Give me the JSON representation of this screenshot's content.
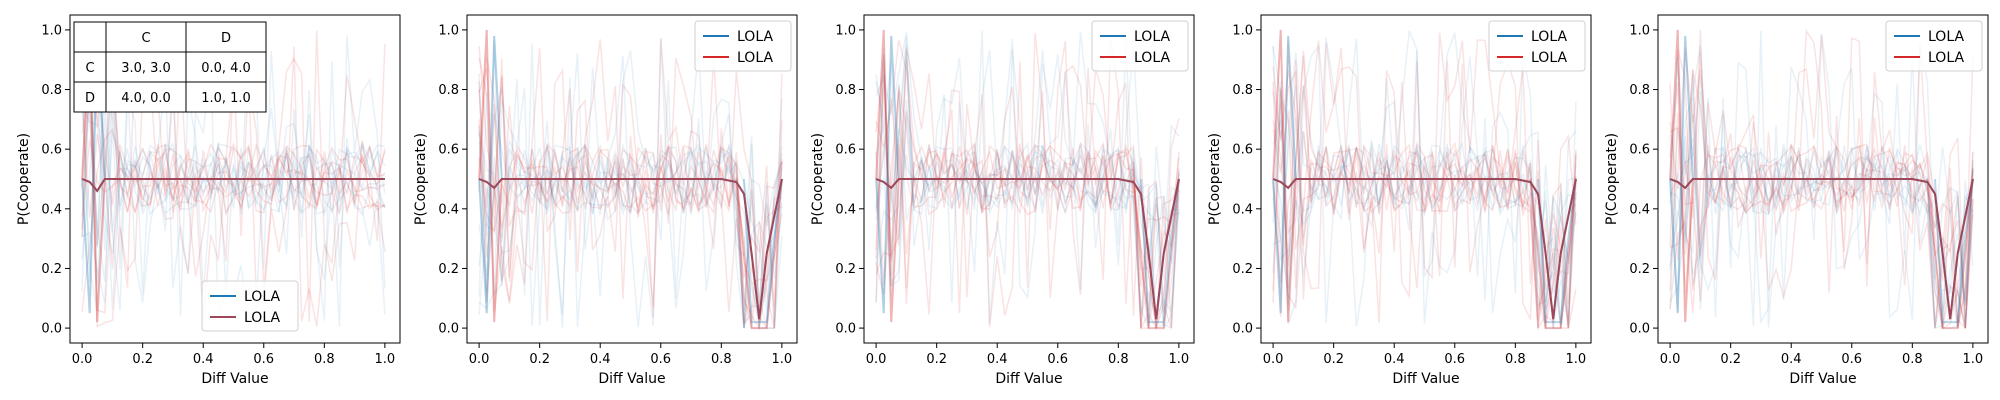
{
  "colors": {
    "blue": "#1f77b4",
    "red": "#d62728",
    "mean_line": "#a0485a",
    "background": "#ffffff"
  },
  "chart_data": [
    {
      "type": "line",
      "xlabel": "Diff Value",
      "ylabel": "P(Cooperate)",
      "xlim": [
        -0.04,
        1.05
      ],
      "ylim": [
        -0.05,
        1.05
      ],
      "xticks": [
        "0.0",
        "0.2",
        "0.4",
        "0.6",
        "0.8",
        "1.0"
      ],
      "yticks": [
        "0.0",
        "0.2",
        "0.4",
        "0.6",
        "0.8",
        "1.0"
      ],
      "legend": {
        "placement": "lower-center",
        "entries": [
          "LOLA",
          "LOLA"
        ]
      },
      "payoff_table": {
        "col_headers": [
          "C",
          "D"
        ],
        "rows": [
          {
            "label": "C",
            "cells": [
              "3.0, 3.0",
              "0.0, 4.0"
            ]
          },
          {
            "label": "D",
            "cells": [
              "4.0, 0.0",
              "1.0, 1.0"
            ]
          }
        ]
      },
      "series": [
        {
          "x": [
            0.0,
            0.025,
            0.05,
            0.075,
            0.1,
            0.125,
            0.15,
            0.2,
            0.25,
            0.3,
            0.35,
            0.4,
            0.45,
            0.5,
            0.55,
            0.6,
            0.65,
            0.7,
            0.75,
            0.8,
            0.85,
            0.9,
            0.95,
            1.0
          ],
          "y": [
            0.5,
            0.49,
            0.46,
            0.5,
            0.5,
            0.5,
            0.5,
            0.5,
            0.5,
            0.5,
            0.5,
            0.5,
            0.5,
            0.5,
            0.5,
            0.5,
            0.5,
            0.5,
            0.5,
            0.5,
            0.5,
            0.5,
            0.5,
            0.5
          ]
        }
      ]
    },
    {
      "type": "line",
      "xlabel": "Diff Value",
      "ylabel": "P(Cooperate)",
      "xlim": [
        -0.04,
        1.05
      ],
      "ylim": [
        -0.05,
        1.05
      ],
      "xticks": [
        "0.0",
        "0.2",
        "0.4",
        "0.6",
        "0.8",
        "1.0"
      ],
      "yticks": [
        "0.0",
        "0.2",
        "0.4",
        "0.6",
        "0.8",
        "1.0"
      ],
      "legend": {
        "placement": "top-right",
        "entries": [
          "LOLA",
          "LOLA"
        ]
      },
      "series": [
        {
          "x": [
            0.0,
            0.025,
            0.05,
            0.075,
            0.1,
            0.15,
            0.2,
            0.3,
            0.4,
            0.5,
            0.6,
            0.7,
            0.8,
            0.85,
            0.875,
            0.9,
            0.925,
            0.95,
            1.0
          ],
          "y": [
            0.5,
            0.49,
            0.47,
            0.5,
            0.5,
            0.5,
            0.5,
            0.5,
            0.5,
            0.5,
            0.5,
            0.5,
            0.5,
            0.49,
            0.45,
            0.25,
            0.03,
            0.25,
            0.5
          ]
        }
      ]
    },
    {
      "type": "line",
      "xlabel": "Diff Value",
      "ylabel": "P(Cooperate)",
      "xlim": [
        -0.04,
        1.05
      ],
      "ylim": [
        -0.05,
        1.05
      ],
      "xticks": [
        "0.0",
        "0.2",
        "0.4",
        "0.6",
        "0.8",
        "1.0"
      ],
      "yticks": [
        "0.0",
        "0.2",
        "0.4",
        "0.6",
        "0.8",
        "1.0"
      ],
      "legend": {
        "placement": "top-right",
        "entries": [
          "LOLA",
          "LOLA"
        ]
      },
      "series": [
        {
          "x": [
            0.0,
            0.025,
            0.05,
            0.075,
            0.1,
            0.15,
            0.2,
            0.3,
            0.4,
            0.5,
            0.6,
            0.7,
            0.8,
            0.85,
            0.875,
            0.9,
            0.925,
            0.95,
            1.0
          ],
          "y": [
            0.5,
            0.49,
            0.47,
            0.5,
            0.5,
            0.5,
            0.5,
            0.5,
            0.5,
            0.5,
            0.5,
            0.5,
            0.5,
            0.49,
            0.45,
            0.25,
            0.03,
            0.25,
            0.5
          ]
        }
      ]
    },
    {
      "type": "line",
      "xlabel": "Diff Value",
      "ylabel": "P(Cooperate)",
      "xlim": [
        -0.04,
        1.05
      ],
      "ylim": [
        -0.05,
        1.05
      ],
      "xticks": [
        "0.0",
        "0.2",
        "0.4",
        "0.6",
        "0.8",
        "1.0"
      ],
      "yticks": [
        "0.0",
        "0.2",
        "0.4",
        "0.6",
        "0.8",
        "1.0"
      ],
      "legend": {
        "placement": "top-right",
        "entries": [
          "LOLA",
          "LOLA"
        ]
      },
      "series": [
        {
          "x": [
            0.0,
            0.025,
            0.05,
            0.075,
            0.1,
            0.15,
            0.2,
            0.3,
            0.4,
            0.5,
            0.6,
            0.7,
            0.8,
            0.85,
            0.875,
            0.9,
            0.925,
            0.95,
            1.0
          ],
          "y": [
            0.5,
            0.49,
            0.47,
            0.5,
            0.5,
            0.5,
            0.5,
            0.5,
            0.5,
            0.5,
            0.5,
            0.5,
            0.5,
            0.49,
            0.45,
            0.25,
            0.03,
            0.25,
            0.5
          ]
        }
      ]
    },
    {
      "type": "line",
      "xlabel": "Diff Value",
      "ylabel": "P(Cooperate)",
      "xlim": [
        -0.04,
        1.05
      ],
      "ylim": [
        -0.05,
        1.05
      ],
      "xticks": [
        "0.0",
        "0.2",
        "0.4",
        "0.6",
        "0.8",
        "1.0"
      ],
      "yticks": [
        "0.0",
        "0.2",
        "0.4",
        "0.6",
        "0.8",
        "1.0"
      ],
      "legend": {
        "placement": "top-right",
        "entries": [
          "LOLA",
          "LOLA"
        ]
      },
      "series": [
        {
          "x": [
            0.0,
            0.025,
            0.05,
            0.075,
            0.1,
            0.15,
            0.2,
            0.3,
            0.4,
            0.5,
            0.6,
            0.7,
            0.8,
            0.85,
            0.875,
            0.9,
            0.925,
            0.95,
            1.0
          ],
          "y": [
            0.5,
            0.49,
            0.47,
            0.5,
            0.5,
            0.5,
            0.5,
            0.5,
            0.5,
            0.5,
            0.5,
            0.5,
            0.5,
            0.49,
            0.45,
            0.25,
            0.03,
            0.25,
            0.5
          ]
        }
      ]
    }
  ]
}
